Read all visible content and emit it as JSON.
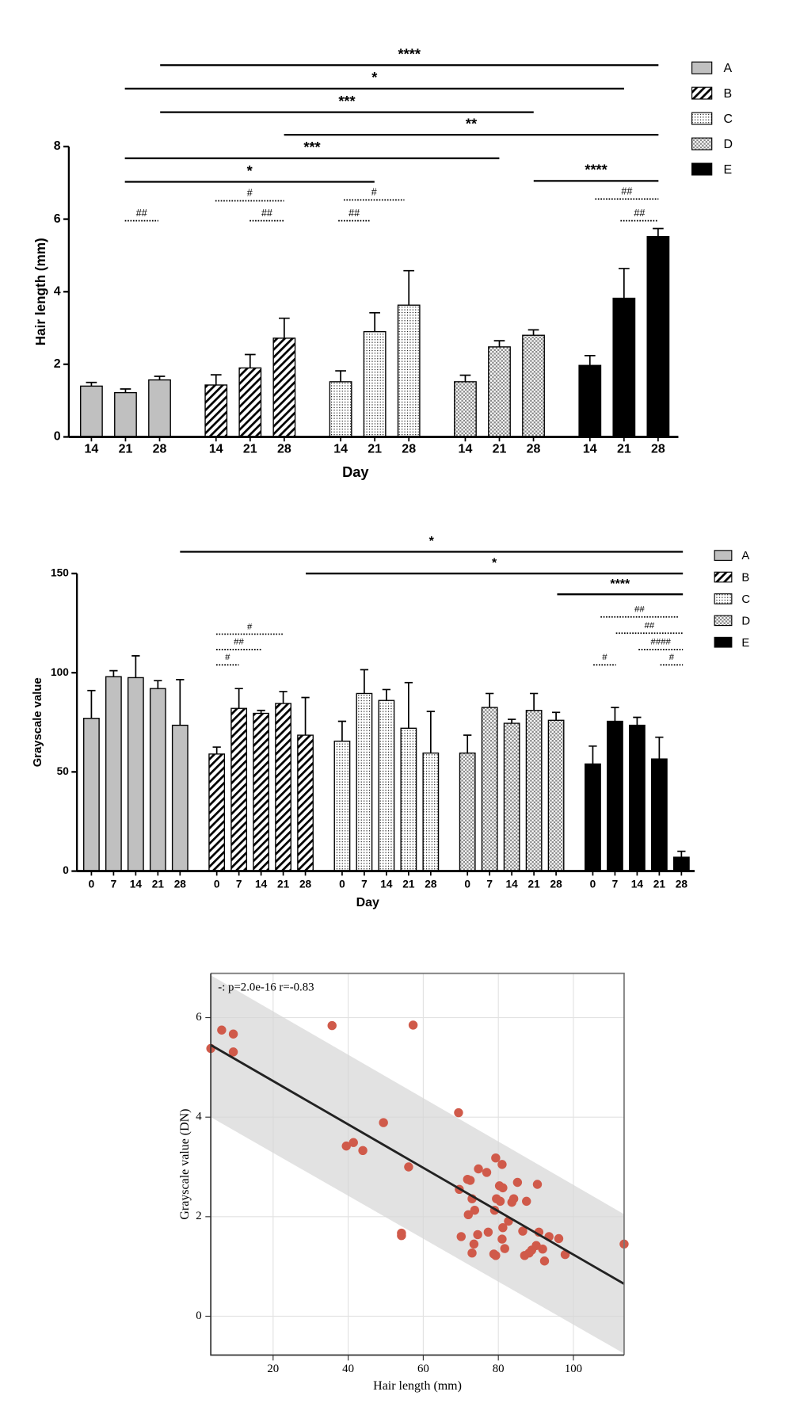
{
  "chart_data": [
    {
      "type": "bar",
      "ylabel": "Hair  length (mm)",
      "xlabel": "Day",
      "categories": [
        "14",
        "21",
        "28"
      ],
      "ylim": [
        0,
        8
      ],
      "yticks": [
        0,
        2,
        4,
        6,
        8
      ],
      "series": [
        {
          "name": "A",
          "color": "#c0c0c0",
          "pattern": "solid",
          "values": [
            1.4,
            1.22,
            1.57
          ],
          "errors": [
            0.1,
            0.1,
            0.1
          ]
        },
        {
          "name": "B",
          "color": "#000000",
          "pattern": "hatch",
          "values": [
            1.43,
            1.9,
            2.72
          ],
          "errors": [
            0.28,
            0.37,
            0.55
          ]
        },
        {
          "name": "C",
          "color": "#000000",
          "pattern": "dots",
          "values": [
            1.52,
            2.9,
            3.63
          ],
          "errors": [
            0.3,
            0.52,
            0.95
          ]
        },
        {
          "name": "D",
          "color": "#000000",
          "pattern": "checker",
          "values": [
            1.52,
            2.48,
            2.8
          ],
          "errors": [
            0.18,
            0.17,
            0.15
          ]
        },
        {
          "name": "E",
          "color": "#000000",
          "pattern": "solid",
          "values": [
            1.97,
            3.82,
            5.52
          ],
          "errors": [
            0.27,
            0.82,
            0.22
          ]
        }
      ],
      "annotations": [
        {
          "text": "****",
          "line": "solid"
        },
        {
          "text": "*",
          "line": "solid"
        },
        {
          "text": "***",
          "line": "solid"
        },
        {
          "text": "**",
          "line": "solid"
        },
        {
          "text": "***",
          "line": "solid"
        },
        {
          "text": "*",
          "line": "solid"
        },
        {
          "text": "****",
          "line": "solid"
        },
        {
          "text": "##",
          "line": "dotted"
        },
        {
          "text": "#",
          "line": "dotted"
        },
        {
          "text": "##",
          "line": "dotted"
        },
        {
          "text": "#",
          "line": "dotted"
        },
        {
          "text": "##",
          "line": "dotted"
        },
        {
          "text": "##",
          "line": "dotted"
        },
        {
          "text": "##",
          "line": "dotted"
        }
      ],
      "legend": "right"
    },
    {
      "type": "bar",
      "ylabel": "Grayscale value",
      "xlabel": "Day",
      "categories": [
        "0",
        "7",
        "14",
        "21",
        "28"
      ],
      "ylim": [
        0,
        150
      ],
      "yticks": [
        0,
        50,
        100,
        150
      ],
      "series": [
        {
          "name": "A",
          "color": "#c0c0c0",
          "pattern": "solid",
          "values": [
            77,
            98,
            97.5,
            92,
            73.5
          ],
          "errors": [
            14,
            3,
            11,
            4,
            23
          ]
        },
        {
          "name": "B",
          "color": "#000000",
          "pattern": "hatch",
          "values": [
            59,
            82,
            79.5,
            84.5,
            68.5
          ],
          "errors": [
            3.5,
            10,
            1.5,
            6,
            19
          ]
        },
        {
          "name": "C",
          "color": "#000000",
          "pattern": "dots",
          "values": [
            65.5,
            89.5,
            86,
            72,
            59.5
          ],
          "errors": [
            10,
            12,
            5.5,
            23,
            21
          ]
        },
        {
          "name": "D",
          "color": "#000000",
          "pattern": "checker",
          "values": [
            59.5,
            82.5,
            74.5,
            81,
            76
          ],
          "errors": [
            9,
            7,
            2,
            8.5,
            4
          ]
        },
        {
          "name": "E",
          "color": "#000000",
          "pattern": "solid",
          "values": [
            54,
            75.5,
            73.5,
            56.5,
            7
          ],
          "errors": [
            9,
            7,
            4,
            11,
            3
          ]
        }
      ],
      "annotations": [
        {
          "text": "*",
          "line": "solid"
        },
        {
          "text": "*",
          "line": "solid"
        },
        {
          "text": "****",
          "line": "solid"
        },
        {
          "text": "##",
          "line": "dotted"
        },
        {
          "text": "##",
          "line": "dotted"
        },
        {
          "text": "####",
          "line": "dotted"
        },
        {
          "text": "#",
          "line": "dotted"
        },
        {
          "text": "#",
          "line": "dotted"
        },
        {
          "text": "#",
          "line": "dotted"
        },
        {
          "text": "##",
          "line": "dotted"
        },
        {
          "text": "#",
          "line": "dotted"
        }
      ],
      "legend": "right"
    },
    {
      "type": "scatter",
      "annotation": "-: p=2.0e-16 r=-0.83",
      "xlabel": "Hair length (mm)",
      "ylabel": "Grayscale value (DN)",
      "xlim": [
        3.4,
        113.5
      ],
      "ylim": [
        -0.78,
        6.89
      ],
      "xticks": [
        20,
        40,
        60,
        80,
        100
      ],
      "yticks": [
        0,
        2,
        4,
        6
      ],
      "grid": true,
      "color": "#d05a4a",
      "x": [
        3.4,
        6.3,
        9.4,
        9.4,
        35.7,
        57.3,
        69.4,
        49.4,
        39.5,
        41.4,
        43.9,
        56.1,
        54.2,
        54.2,
        79.3,
        81.0,
        74.7,
        76.9,
        71.8,
        72.5,
        69.6,
        85.1,
        90.4,
        80.3,
        81.2,
        73.0,
        79.5,
        80.5,
        84.1,
        83.6,
        87.5,
        73.7,
        79.0,
        72.0,
        82.7,
        81.2,
        77.3,
        86.5,
        90.8,
        70.1,
        74.5,
        81.0,
        93.5,
        96.1,
        73.5,
        113.5,
        81.7,
        90.1,
        73.0,
        88.9,
        91.8,
        78.8,
        79.3,
        87.0,
        88.2,
        97.8,
        92.3
      ],
      "values": [
        5.38,
        5.75,
        5.67,
        5.31,
        5.84,
        5.85,
        4.09,
        3.89,
        3.42,
        3.49,
        3.33,
        3.0,
        1.67,
        1.62,
        3.18,
        3.05,
        2.96,
        2.89,
        2.75,
        2.73,
        2.55,
        2.69,
        2.65,
        2.62,
        2.58,
        2.36,
        2.36,
        2.31,
        2.36,
        2.29,
        2.31,
        2.13,
        2.13,
        2.04,
        1.91,
        1.78,
        1.69,
        1.71,
        1.69,
        1.6,
        1.64,
        1.55,
        1.6,
        1.56,
        1.45,
        1.45,
        1.36,
        1.42,
        1.27,
        1.33,
        1.35,
        1.25,
        1.22,
        1.22,
        1.27,
        1.24,
        1.11
      ],
      "fit": {
        "x": [
          3.4,
          113.5
        ],
        "y": [
          5.45,
          0.65
        ]
      },
      "band": {
        "x": [
          3.4,
          113.5
        ],
        "upper": [
          6.85,
          2.05
        ],
        "lower": [
          4.0,
          -0.75
        ]
      }
    }
  ]
}
